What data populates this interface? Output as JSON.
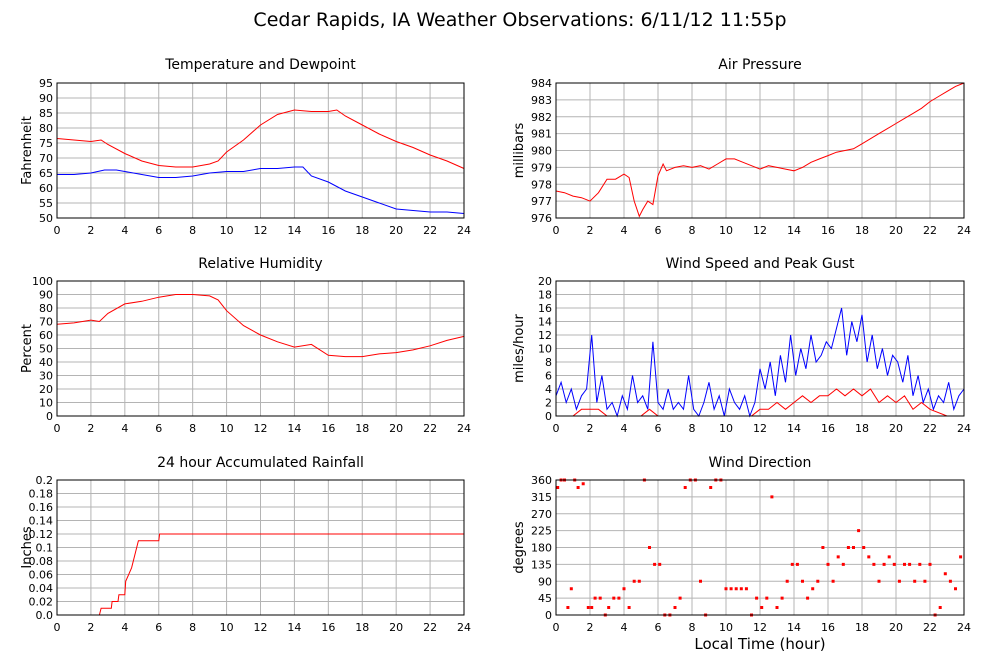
{
  "page": {
    "title": "Cedar Rapids, IA Weather Observations: 6/11/12 11:55p",
    "xlabel": "Local Time (hour)"
  },
  "colors": {
    "primary": "#ff0000",
    "secondary": "#0000ff",
    "grid": "#b4b4b4",
    "axis": "#000000"
  },
  "chart_data": [
    {
      "id": "temp",
      "type": "line",
      "title": "Temperature and Dewpoint",
      "ylabel": "Fahrenheit",
      "xlabel": "",
      "xlim": [
        0,
        24
      ],
      "ylim": [
        50,
        95
      ],
      "xticks": [
        0,
        2,
        4,
        6,
        8,
        10,
        12,
        14,
        16,
        18,
        20,
        22,
        24
      ],
      "yticks": [
        50,
        55,
        60,
        65,
        70,
        75,
        80,
        85,
        90,
        95
      ],
      "grid": true,
      "series": [
        {
          "color": "#ff0000",
          "x": [
            0,
            1,
            2,
            2.6,
            3,
            4,
            5,
            6,
            7,
            8,
            9,
            9.5,
            10,
            11,
            12,
            13,
            14,
            15,
            16,
            16.5,
            17,
            18,
            19,
            20,
            21,
            22,
            23,
            24
          ],
          "y": [
            76.5,
            76,
            75.5,
            76,
            74.5,
            71.5,
            69,
            67.5,
            67,
            67,
            68,
            69,
            72,
            76,
            81,
            84.5,
            86,
            85.5,
            85.5,
            86,
            84,
            81,
            78,
            75.5,
            73.5,
            71,
            69,
            66.5
          ]
        },
        {
          "color": "#0000ff",
          "x": [
            0,
            1,
            2,
            2.8,
            3.5,
            4,
            5,
            6,
            7,
            8,
            9,
            10,
            11,
            12,
            13,
            14,
            14.5,
            15,
            16,
            17,
            18,
            19,
            20,
            21,
            22,
            23,
            24
          ],
          "y": [
            64.5,
            64.5,
            65,
            66,
            66,
            65.5,
            64.5,
            63.5,
            63.5,
            64,
            65,
            65.5,
            65.5,
            66.5,
            66.5,
            67,
            67,
            64,
            62,
            59,
            57,
            55,
            53,
            52.5,
            52,
            52,
            51.5
          ]
        }
      ]
    },
    {
      "id": "pressure",
      "type": "line",
      "title": "Air Pressure",
      "ylabel": "millibars",
      "xlabel": "",
      "xlim": [
        0,
        24
      ],
      "ylim": [
        976,
        984
      ],
      "xticks": [
        0,
        2,
        4,
        6,
        8,
        10,
        12,
        14,
        16,
        18,
        20,
        22,
        24
      ],
      "yticks": [
        976,
        977,
        978,
        979,
        980,
        981,
        982,
        983,
        984
      ],
      "grid": true,
      "series": [
        {
          "color": "#ff0000",
          "x": [
            0,
            0.5,
            1,
            1.5,
            2,
            2.5,
            3,
            3.5,
            4,
            4.3,
            4.6,
            4.9,
            5.1,
            5.4,
            5.7,
            6,
            6.3,
            6.5,
            7,
            7.5,
            8,
            8.5,
            9,
            9.5,
            10,
            10.5,
            11,
            11.5,
            12,
            12.5,
            13,
            13.5,
            14,
            14.5,
            15,
            15.5,
            16,
            16.5,
            17,
            17.5,
            18,
            18.5,
            19,
            19.5,
            20,
            20.5,
            21,
            21.5,
            22,
            22.5,
            23,
            23.5,
            24
          ],
          "y": [
            977.6,
            977.5,
            977.3,
            977.2,
            977.0,
            977.5,
            978.3,
            978.3,
            978.6,
            978.4,
            977.0,
            976.1,
            976.5,
            977.0,
            976.8,
            978.5,
            979.2,
            978.8,
            979.0,
            979.1,
            979.0,
            979.1,
            978.9,
            979.2,
            979.5,
            979.5,
            979.3,
            979.1,
            978.9,
            979.1,
            979.0,
            978.9,
            978.8,
            979.0,
            979.3,
            979.5,
            979.7,
            979.9,
            980.0,
            980.1,
            980.4,
            980.7,
            981.0,
            981.3,
            981.6,
            981.9,
            982.2,
            982.5,
            982.9,
            983.2,
            983.5,
            983.8,
            984.0
          ]
        }
      ]
    },
    {
      "id": "humidity",
      "type": "line",
      "title": "Relative Humidity",
      "ylabel": "Percent",
      "xlabel": "",
      "xlim": [
        0,
        24
      ],
      "ylim": [
        0,
        100
      ],
      "xticks": [
        0,
        2,
        4,
        6,
        8,
        10,
        12,
        14,
        16,
        18,
        20,
        22,
        24
      ],
      "yticks": [
        0,
        10,
        20,
        30,
        40,
        50,
        60,
        70,
        80,
        90,
        100
      ],
      "grid": true,
      "series": [
        {
          "color": "#ff0000",
          "x": [
            0,
            1,
            2,
            2.5,
            3,
            4,
            5,
            6,
            7,
            8,
            9,
            9.5,
            10,
            11,
            12,
            13,
            14,
            15,
            16,
            17,
            18,
            19,
            20,
            21,
            22,
            23,
            24
          ],
          "y": [
            68,
            69,
            71,
            70,
            76,
            83,
            85,
            88,
            90,
            90,
            89,
            86,
            78,
            67,
            60,
            55,
            51,
            53,
            45,
            44,
            44,
            46,
            47,
            49,
            52,
            56,
            59
          ]
        }
      ]
    },
    {
      "id": "wind",
      "type": "line",
      "title": "Wind Speed and Peak Gust",
      "ylabel": "miles/hour",
      "xlabel": "",
      "xlim": [
        0,
        24
      ],
      "ylim": [
        0,
        20
      ],
      "xticks": [
        0,
        2,
        4,
        6,
        8,
        10,
        12,
        14,
        16,
        18,
        20,
        22,
        24
      ],
      "yticks": [
        0,
        2,
        4,
        6,
        8,
        10,
        12,
        14,
        16,
        18,
        20
      ],
      "grid": true,
      "series": [
        {
          "color": "#0000ff",
          "x": [
            0,
            0.3,
            0.6,
            0.9,
            1.2,
            1.5,
            1.8,
            2.1,
            2.4,
            2.7,
            3,
            3.3,
            3.6,
            3.9,
            4.2,
            4.5,
            4.8,
            5.1,
            5.4,
            5.7,
            6,
            6.3,
            6.6,
            6.9,
            7.2,
            7.5,
            7.8,
            8.1,
            8.4,
            8.7,
            9,
            9.3,
            9.6,
            9.9,
            10.2,
            10.5,
            10.8,
            11.1,
            11.4,
            11.7,
            12,
            12.3,
            12.6,
            12.9,
            13.2,
            13.5,
            13.8,
            14.1,
            14.4,
            14.7,
            15,
            15.3,
            15.6,
            15.9,
            16.2,
            16.5,
            16.8,
            17.1,
            17.4,
            17.7,
            18,
            18.3,
            18.6,
            18.9,
            19.2,
            19.5,
            19.8,
            20.1,
            20.4,
            20.7,
            21,
            21.3,
            21.6,
            21.9,
            22.2,
            22.5,
            22.8,
            23.1,
            23.4,
            23.7,
            24
          ],
          "y": [
            3,
            5,
            2,
            4,
            1,
            3,
            4,
            12,
            2,
            6,
            1,
            2,
            0,
            3,
            1,
            6,
            2,
            3,
            1,
            11,
            2,
            1,
            4,
            1,
            2,
            1,
            6,
            1,
            0,
            2,
            5,
            1,
            3,
            0,
            4,
            2,
            1,
            3,
            0,
            2,
            7,
            4,
            8,
            3,
            9,
            5,
            12,
            6,
            10,
            7,
            12,
            8,
            9,
            11,
            10,
            13,
            16,
            9,
            14,
            11,
            15,
            8,
            12,
            7,
            10,
            6,
            9,
            8,
            5,
            9,
            3,
            6,
            2,
            4,
            1,
            3,
            2,
            5,
            1,
            3,
            4
          ]
        },
        {
          "color": "#ff0000",
          "x": [
            0,
            1,
            1.5,
            2,
            2.5,
            3,
            4,
            5,
            5.5,
            6,
            7,
            8,
            9,
            10,
            11,
            11.5,
            12,
            12.5,
            13,
            13.5,
            14,
            14.5,
            15,
            15.5,
            16,
            16.5,
            17,
            17.5,
            18,
            18.5,
            19,
            19.5,
            20,
            20.5,
            21,
            21.5,
            22,
            23,
            24
          ],
          "y": [
            0,
            0,
            1,
            1,
            1,
            0,
            0,
            0,
            1,
            0,
            0,
            0,
            0,
            0,
            0,
            0,
            1,
            1,
            2,
            1,
            2,
            3,
            2,
            3,
            3,
            4,
            3,
            4,
            3,
            4,
            2,
            3,
            2,
            3,
            1,
            2,
            1,
            0,
            0
          ]
        }
      ]
    },
    {
      "id": "rain",
      "type": "line",
      "title": "24 hour Accumulated Rainfall",
      "ylabel": "Inches",
      "xlabel": "",
      "xlim": [
        0,
        24
      ],
      "ylim": [
        0,
        0.2
      ],
      "xticks": [
        0,
        2,
        4,
        6,
        8,
        10,
        12,
        14,
        16,
        18,
        20,
        22,
        24
      ],
      "yticks": [
        0.0,
        0.02,
        0.04,
        0.06,
        0.08,
        0.1,
        0.12,
        0.14,
        0.16,
        0.18,
        0.2
      ],
      "yticklabels": [
        "0.0",
        "0.02",
        "0.04",
        "0.06",
        "0.08",
        "0.1",
        "0.12",
        "0.14",
        "0.16",
        "0.18",
        "0.2"
      ],
      "grid": true,
      "series": [
        {
          "color": "#ff0000",
          "x": [
            0,
            2.5,
            2.6,
            3.2,
            3.25,
            3.6,
            3.65,
            4.0,
            4.05,
            4.4,
            4.8,
            4.85,
            6.0,
            6.05,
            24
          ],
          "y": [
            0,
            0,
            0.01,
            0.01,
            0.02,
            0.02,
            0.03,
            0.03,
            0.05,
            0.07,
            0.11,
            0.11,
            0.11,
            0.12,
            0.12
          ]
        }
      ]
    },
    {
      "id": "direction",
      "type": "scatter",
      "title": "Wind Direction",
      "ylabel": "degrees",
      "xlabel": "Local Time (hour)",
      "xlim": [
        0,
        24
      ],
      "ylim": [
        0,
        360
      ],
      "xticks": [
        0,
        2,
        4,
        6,
        8,
        10,
        12,
        14,
        16,
        18,
        20,
        22,
        24
      ],
      "yticks": [
        0,
        45,
        90,
        135,
        180,
        225,
        270,
        315,
        360
      ],
      "grid": true,
      "series": [
        {
          "color": "#ff0000",
          "x": [
            0.1,
            0.3,
            0.5,
            0.7,
            0.9,
            1.1,
            1.3,
            1.6,
            1.9,
            2.1,
            2.3,
            2.6,
            2.9,
            3.1,
            3.4,
            3.7,
            4.0,
            4.3,
            4.6,
            4.9,
            5.2,
            5.5,
            5.8,
            6.1,
            6.4,
            6.7,
            7.0,
            7.3,
            7.6,
            7.9,
            8.2,
            8.5,
            8.8,
            9.1,
            9.4,
            9.7,
            10.0,
            10.3,
            10.6,
            10.9,
            11.2,
            11.5,
            11.8,
            12.1,
            12.4,
            12.7,
            13.0,
            13.3,
            13.6,
            13.9,
            14.2,
            14.5,
            14.8,
            15.1,
            15.4,
            15.7,
            16.0,
            16.3,
            16.6,
            16.9,
            17.2,
            17.5,
            17.8,
            18.1,
            18.4,
            18.7,
            19.0,
            19.3,
            19.6,
            19.9,
            20.2,
            20.5,
            20.8,
            21.1,
            21.4,
            21.7,
            22.0,
            22.3,
            22.6,
            22.9,
            23.2,
            23.5,
            23.8
          ],
          "y": [
            340,
            360,
            360,
            20,
            70,
            360,
            340,
            350,
            20,
            20,
            45,
            45,
            0,
            20,
            45,
            45,
            70,
            20,
            90,
            90,
            360,
            180,
            135,
            135,
            0,
            0,
            20,
            45,
            340,
            360,
            360,
            90,
            0,
            340,
            360,
            360,
            70,
            70,
            70,
            70,
            70,
            0,
            45,
            20,
            45,
            315,
            20,
            45,
            90,
            135,
            135,
            90,
            45,
            70,
            90,
            180,
            135,
            90,
            155,
            135,
            180,
            180,
            225,
            180,
            155,
            135,
            90,
            135,
            155,
            135,
            90,
            135,
            135,
            90,
            135,
            90,
            135,
            0,
            20,
            110,
            90,
            70,
            155
          ]
        }
      ]
    }
  ]
}
